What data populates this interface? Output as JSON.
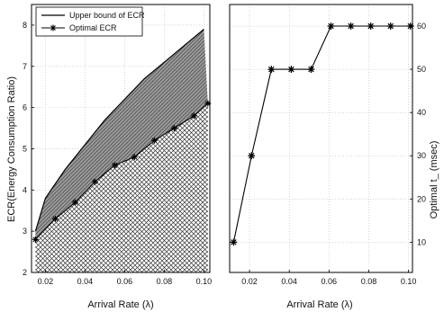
{
  "chart_data": [
    {
      "type": "area",
      "xlabel": "Arrival Rate (λ)",
      "ylabel": "ECR(Energy Consumption Ratio)",
      "xlim": [
        0.013,
        0.103
      ],
      "ylim": [
        2,
        8.5
      ],
      "xticks": [
        "0.02",
        "0.04",
        "0.06",
        "0.08",
        "0.10"
      ],
      "yticks": [
        "2",
        "3",
        "4",
        "5",
        "6",
        "7",
        "8"
      ],
      "grid": true,
      "legend_position": "top-left",
      "series": [
        {
          "name": "Upper bound of ECR",
          "x": [
            0.015,
            0.02,
            0.03,
            0.04,
            0.05,
            0.06,
            0.07,
            0.08,
            0.09,
            0.1
          ],
          "y": [
            3.0,
            3.8,
            4.5,
            5.1,
            5.7,
            6.2,
            6.7,
            7.1,
            7.5,
            7.9
          ]
        },
        {
          "name": "Optimal ECR",
          "x": [
            0.015,
            0.025,
            0.035,
            0.045,
            0.055,
            0.065,
            0.075,
            0.085,
            0.095,
            0.102
          ],
          "y": [
            2.8,
            3.3,
            3.7,
            4.2,
            4.6,
            4.8,
            5.2,
            5.5,
            5.8,
            6.1
          ]
        }
      ]
    },
    {
      "type": "line",
      "xlabel": "Arrival Rate (λ)",
      "ylabel": "Optimal t_ (msec)",
      "xlim": [
        0.01,
        0.102
      ],
      "ylim": [
        3,
        65
      ],
      "xticks": [
        "0.02",
        "0.04",
        "0.06",
        "0.08",
        "0.10"
      ],
      "yticks": [
        "10",
        "20",
        "30",
        "40",
        "50",
        "60"
      ],
      "grid": true,
      "series": [
        {
          "x": [
            0.012,
            0.021,
            0.031,
            0.041,
            0.051,
            0.061,
            0.071,
            0.081,
            0.091,
            0.101
          ],
          "y": [
            10,
            30,
            50,
            50,
            50,
            60,
            60,
            60,
            60,
            60
          ]
        }
      ]
    }
  ]
}
